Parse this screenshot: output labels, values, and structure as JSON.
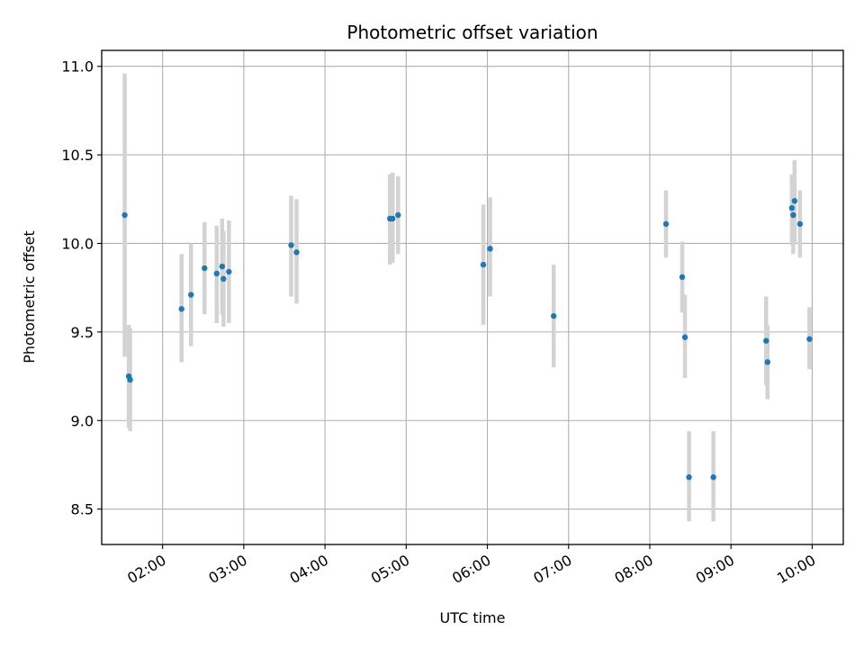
{
  "chart_data": {
    "type": "scatter",
    "title": "Photometric offset variation",
    "xlabel": "UTC time",
    "ylabel": "Photometric offset",
    "grid": true,
    "xlim": [
      "01:15",
      "10:23"
    ],
    "ylim": [
      8.3,
      11.09
    ],
    "xticks": [
      "02:00",
      "03:00",
      "04:00",
      "05:00",
      "06:00",
      "07:00",
      "08:00",
      "09:00",
      "10:00"
    ],
    "yticks": [
      8.5,
      9.0,
      9.5,
      10.0,
      10.5,
      11.0
    ],
    "ytick_labels": [
      "8.5",
      "9.0",
      "9.5",
      "10.0",
      "10.5",
      "11.0"
    ],
    "marker_color": "#1f77b4",
    "errorbar_color": "#d3d3d3",
    "points": [
      {
        "x": "01:32",
        "y": 10.16,
        "ylow": 9.36,
        "yhigh": 10.96
      },
      {
        "x": "01:35",
        "y": 9.25,
        "ylow": 8.96,
        "yhigh": 9.54
      },
      {
        "x": "01:36",
        "y": 9.23,
        "ylow": 8.94,
        "yhigh": 9.52
      },
      {
        "x": "02:14",
        "y": 9.63,
        "ylow": 9.33,
        "yhigh": 9.94
      },
      {
        "x": "02:21",
        "y": 9.71,
        "ylow": 9.42,
        "yhigh": 10.0
      },
      {
        "x": "02:31",
        "y": 9.86,
        "ylow": 9.6,
        "yhigh": 10.12
      },
      {
        "x": "02:40",
        "y": 9.83,
        "ylow": 9.55,
        "yhigh": 10.1
      },
      {
        "x": "02:44",
        "y": 9.87,
        "ylow": 9.6,
        "yhigh": 10.14
      },
      {
        "x": "02:45",
        "y": 9.8,
        "ylow": 9.53,
        "yhigh": 10.07
      },
      {
        "x": "02:49",
        "y": 9.84,
        "ylow": 9.55,
        "yhigh": 10.13
      },
      {
        "x": "03:35",
        "y": 9.99,
        "ylow": 9.7,
        "yhigh": 10.27
      },
      {
        "x": "03:39",
        "y": 9.95,
        "ylow": 9.66,
        "yhigh": 10.25
      },
      {
        "x": "04:48",
        "y": 10.14,
        "ylow": 9.88,
        "yhigh": 10.39
      },
      {
        "x": "04:50",
        "y": 10.14,
        "ylow": 9.89,
        "yhigh": 10.4
      },
      {
        "x": "04:54",
        "y": 10.16,
        "ylow": 9.94,
        "yhigh": 10.38
      },
      {
        "x": "05:57",
        "y": 9.88,
        "ylow": 9.54,
        "yhigh": 10.22
      },
      {
        "x": "06:02",
        "y": 9.97,
        "ylow": 9.7,
        "yhigh": 10.26
      },
      {
        "x": "06:49",
        "y": 9.59,
        "ylow": 9.3,
        "yhigh": 9.88
      },
      {
        "x": "08:12",
        "y": 10.11,
        "ylow": 9.92,
        "yhigh": 10.3
      },
      {
        "x": "08:24",
        "y": 9.81,
        "ylow": 9.61,
        "yhigh": 10.01
      },
      {
        "x": "08:26",
        "y": 9.47,
        "ylow": 9.24,
        "yhigh": 9.71
      },
      {
        "x": "08:29",
        "y": 8.68,
        "ylow": 8.43,
        "yhigh": 8.94
      },
      {
        "x": "08:47",
        "y": 8.68,
        "ylow": 8.43,
        "yhigh": 8.94
      },
      {
        "x": "09:26",
        "y": 9.45,
        "ylow": 9.2,
        "yhigh": 9.7
      },
      {
        "x": "09:27",
        "y": 9.33,
        "ylow": 9.12,
        "yhigh": 9.54
      },
      {
        "x": "09:45",
        "y": 10.2,
        "ylow": 9.99,
        "yhigh": 10.39
      },
      {
        "x": "09:46",
        "y": 10.16,
        "ylow": 9.94,
        "yhigh": 10.37
      },
      {
        "x": "09:47",
        "y": 10.24,
        "ylow": 10.0,
        "yhigh": 10.47
      },
      {
        "x": "09:51",
        "y": 10.11,
        "ylow": 9.92,
        "yhigh": 10.3
      },
      {
        "x": "09:58",
        "y": 9.46,
        "ylow": 9.29,
        "yhigh": 9.64
      }
    ]
  }
}
